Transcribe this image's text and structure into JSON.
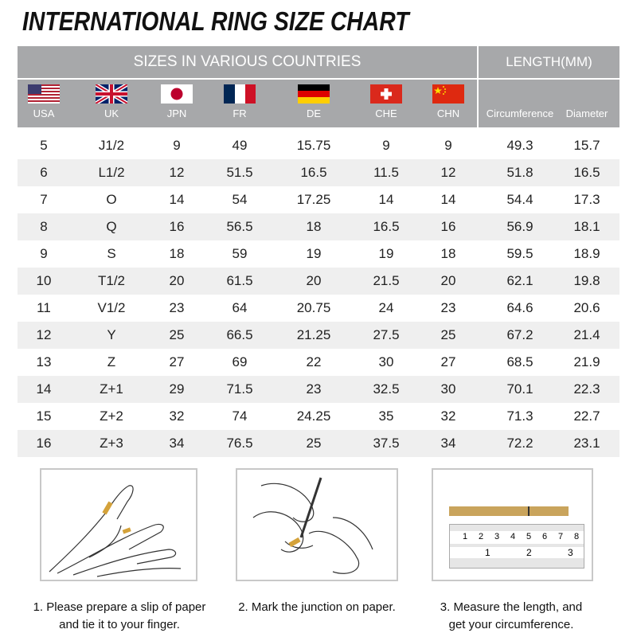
{
  "title": "INTERNATIONAL RING SIZE CHART",
  "header": {
    "sizes_label": "SIZES IN VARIOUS COUNTRIES",
    "length_label": "LENGTH(MM)",
    "columns": [
      {
        "label": "USA",
        "flag": "usa-flag"
      },
      {
        "label": "UK",
        "flag": "uk-flag"
      },
      {
        "label": "JPN",
        "flag": "japan-flag"
      },
      {
        "label": "FR",
        "flag": "france-flag"
      },
      {
        "label": "DE",
        "flag": "germany-flag"
      },
      {
        "label": "CHE",
        "flag": "switzerland-flag"
      },
      {
        "label": "CHN",
        "flag": "china-flag"
      },
      {
        "label": "Circumference"
      },
      {
        "label": "Diameter"
      }
    ]
  },
  "rows": [
    [
      "5",
      "J1/2",
      "9",
      "49",
      "15.75",
      "9",
      "9",
      "49.3",
      "15.7"
    ],
    [
      "6",
      "L1/2",
      "12",
      "51.5",
      "16.5",
      "11.5",
      "12",
      "51.8",
      "16.5"
    ],
    [
      "7",
      "O",
      "14",
      "54",
      "17.25",
      "14",
      "14",
      "54.4",
      "17.3"
    ],
    [
      "8",
      "Q",
      "16",
      "56.5",
      "18",
      "16.5",
      "16",
      "56.9",
      "18.1"
    ],
    [
      "9",
      "S",
      "18",
      "59",
      "19",
      "19",
      "18",
      "59.5",
      "18.9"
    ],
    [
      "10",
      "T1/2",
      "20",
      "61.5",
      "20",
      "21.5",
      "20",
      "62.1",
      "19.8"
    ],
    [
      "11",
      "V1/2",
      "23",
      "64",
      "20.75",
      "24",
      "23",
      "64.6",
      "20.6"
    ],
    [
      "12",
      "Y",
      "25",
      "66.5",
      "21.25",
      "27.5",
      "25",
      "67.2",
      "21.4"
    ],
    [
      "13",
      "Z",
      "27",
      "69",
      "22",
      "30",
      "27",
      "68.5",
      "21.9"
    ],
    [
      "14",
      "Z+1",
      "29",
      "71.5",
      "23",
      "32.5",
      "30",
      "70.1",
      "22.3"
    ],
    [
      "15",
      "Z+2",
      "32",
      "74",
      "24.25",
      "35",
      "32",
      "71.3",
      "22.7"
    ],
    [
      "16",
      "Z+3",
      "34",
      "76.5",
      "25",
      "37.5",
      "34",
      "72.2",
      "23.1"
    ]
  ],
  "steps": [
    {
      "line1": "1. Please prepare a slip of paper",
      "line2": "and tie it to your finger."
    },
    {
      "line1": "2. Mark the junction on paper.",
      "line2": ""
    },
    {
      "line1": "3. Measure the length, and",
      "line2": "get your circumference."
    }
  ],
  "ruler": {
    "top_marks": [
      "1",
      "2",
      "3",
      "4",
      "5",
      "6",
      "7",
      "8"
    ],
    "bottom_marks": [
      "1",
      "2",
      "3"
    ]
  },
  "colors": {
    "header": "#a7a8aa",
    "alt_row": "#efefef",
    "paper": "#c9a45c"
  }
}
